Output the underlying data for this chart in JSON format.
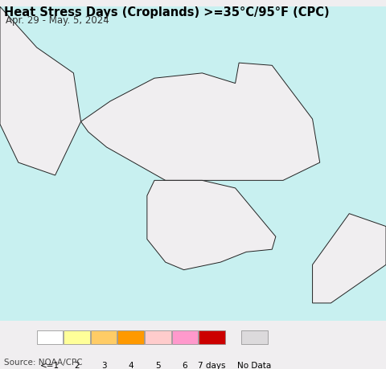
{
  "title": "Heat Stress Days (Croplands) >=35°C/95°F (CPC)",
  "subtitle": "Apr. 29 - May. 5, 2024",
  "source": "Source: NOAA/CPC",
  "legend_labels": [
    "<=1",
    "2",
    "3",
    "4",
    "5",
    "6",
    "7 days",
    "No Data"
  ],
  "legend_colors": [
    "#ffffff",
    "#ffff99",
    "#ffcc66",
    "#ff9900",
    "#ffcccc",
    "#ff99cc",
    "#cc0000",
    "#dcdadc"
  ],
  "ocean_color": "#c8f0f0",
  "land_color": "#f0eef0",
  "border_color": "#222222",
  "province_color": "#888888",
  "title_fontsize": 10.5,
  "subtitle_fontsize": 8.5,
  "fig_bg": "#f0eef0",
  "map_extent": [
    122.0,
    132.5,
    32.3,
    44.6
  ]
}
